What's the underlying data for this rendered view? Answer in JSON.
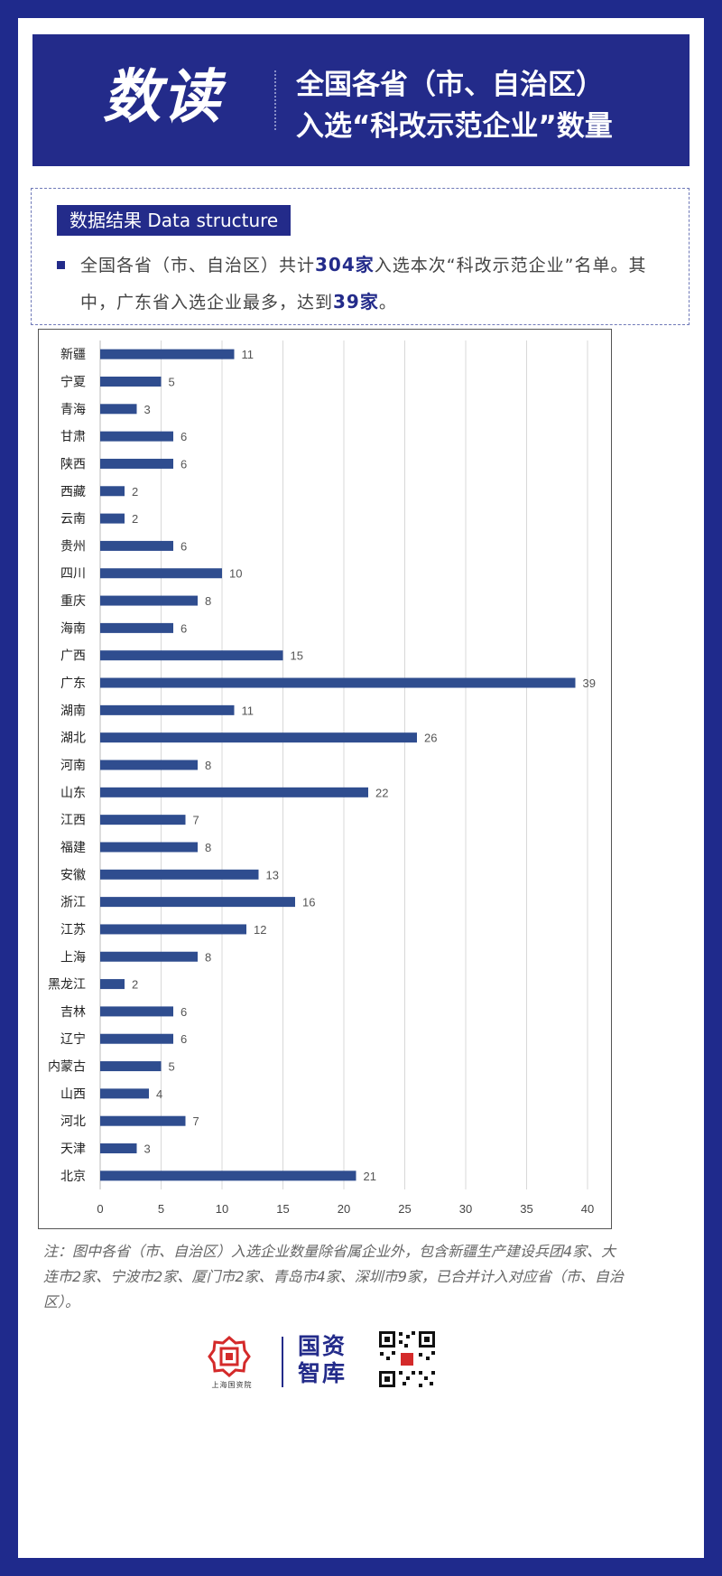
{
  "header": {
    "big_title": "数读",
    "line1": "全国各省（市、自治区）",
    "line2": "入选“科改示范企业”数量"
  },
  "structure": {
    "label": "数据结果 Data structure",
    "text_part1": "全国各省（市、自治区）共计",
    "total": "304家",
    "text_part2": "入选本次“科改示范企业”名单。其中，广东省入选企业最多，达到",
    "max": "39家",
    "text_part3": "。"
  },
  "chart_data": {
    "type": "bar",
    "orientation": "horizontal",
    "categories": [
      "新疆",
      "宁夏",
      "青海",
      "甘肃",
      "陕西",
      "西藏",
      "云南",
      "贵州",
      "四川",
      "重庆",
      "海南",
      "广西",
      "广东",
      "湖南",
      "湖北",
      "河南",
      "山东",
      "江西",
      "福建",
      "安徽",
      "浙江",
      "江苏",
      "上海",
      "黑龙江",
      "吉林",
      "辽宁",
      "内蒙古",
      "山西",
      "河北",
      "天津",
      "北京"
    ],
    "values": [
      11,
      5,
      3,
      6,
      6,
      2,
      2,
      6,
      10,
      8,
      6,
      15,
      39,
      11,
      26,
      8,
      22,
      7,
      8,
      13,
      16,
      12,
      8,
      2,
      6,
      6,
      5,
      4,
      7,
      3,
      21
    ],
    "x_ticks": [
      "0",
      "5",
      "10",
      "15",
      "20",
      "25",
      "30",
      "35",
      "40"
    ],
    "xlim": [
      0,
      40
    ],
    "grid": true,
    "bar_color": "#2f4d8f"
  },
  "note": "注：图中各省（市、自治区）入选企业数量除省属企业外，包含新疆生产建设兵团4家、大连市2家、宁波市2家、厦门市2家、青岛市4家、深圳市9家，已合并计入对应省（市、自治区）。",
  "footer": {
    "logo_sub": "上海国资院",
    "brand_line1": "国资",
    "brand_line2": "智库"
  },
  "colors": {
    "brand": "#232b8a",
    "background": "#1f2a8c",
    "accent_red": "#d42a2a"
  }
}
